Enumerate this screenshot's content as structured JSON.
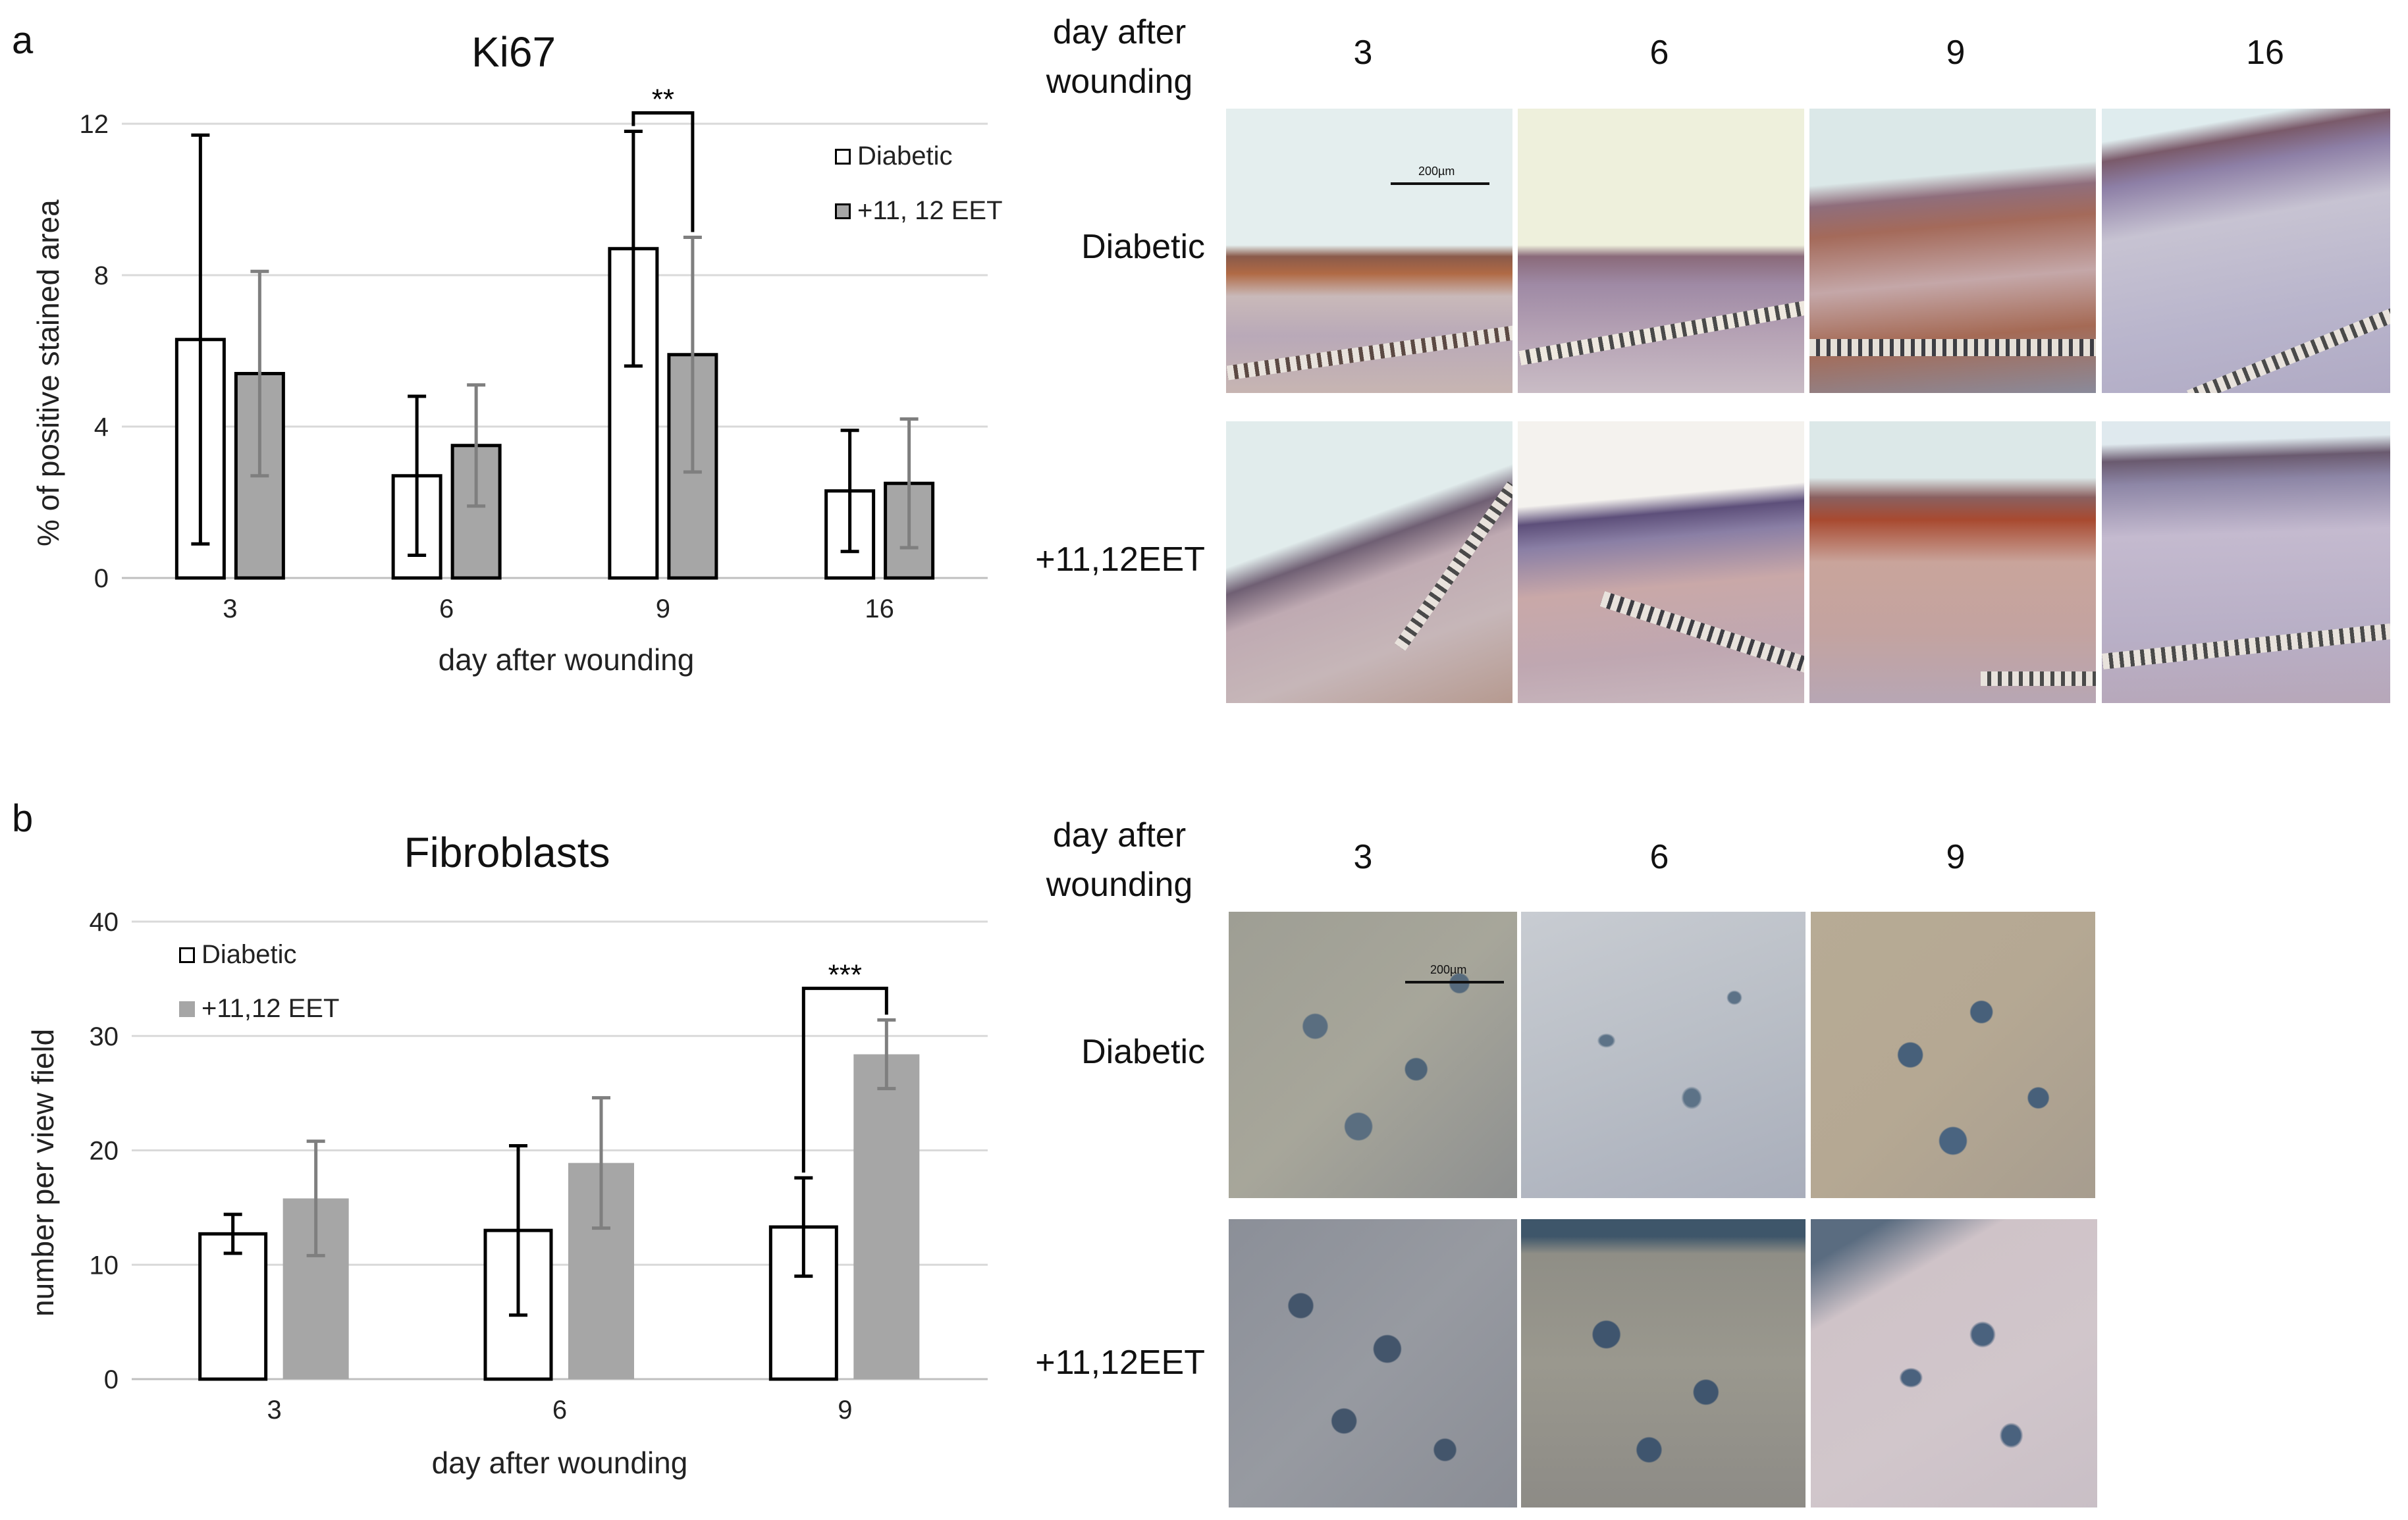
{
  "panel_a": {
    "letter": "a",
    "chart_data": {
      "type": "bar",
      "title": "Ki67",
      "xlabel": "day after wounding",
      "ylabel": "% of positive stained area",
      "categories": [
        "3",
        "6",
        "9",
        "16"
      ],
      "ylim": [
        0,
        12
      ],
      "yticks": [
        "0",
        "4",
        "8",
        "12"
      ],
      "series": [
        {
          "name": "Diabetic",
          "values": [
            6.3,
            2.7,
            8.7,
            2.3
          ],
          "errors": [
            5.4,
            2.1,
            3.1,
            1.6
          ],
          "color": "#ffffff",
          "stroke": "#000000"
        },
        {
          "name": "+11, 12 EET",
          "values": [
            5.4,
            3.5,
            5.9,
            2.5
          ],
          "errors": [
            2.7,
            1.6,
            3.1,
            1.7
          ],
          "color": "#a6a6a6",
          "stroke": "#000000"
        }
      ],
      "significance": {
        "category": "9",
        "label": "**"
      },
      "grid": true,
      "legend": "top-right"
    },
    "micrograph_grid": {
      "header_label": "day after wounding",
      "columns": [
        "3",
        "6",
        "9",
        "16"
      ],
      "rows": [
        "Diabetic",
        "+11,12EET"
      ],
      "scale_bar": "200µm"
    }
  },
  "panel_b": {
    "letter": "b",
    "chart_data": {
      "type": "bar",
      "title": "Fibroblasts",
      "xlabel": "day after wounding",
      "ylabel": "number per view field",
      "categories": [
        "3",
        "6",
        "9"
      ],
      "ylim": [
        0,
        40
      ],
      "yticks": [
        "0",
        "10",
        "20",
        "30",
        "40"
      ],
      "series": [
        {
          "name": "Diabetic",
          "values": [
            12.7,
            13.0,
            13.3
          ],
          "errors": [
            1.7,
            7.4,
            4.3
          ],
          "color": "#ffffff",
          "stroke": "#000000"
        },
        {
          "name": "+11,12 EET",
          "values": [
            15.8,
            18.9,
            28.4
          ],
          "errors": [
            5.0,
            5.7,
            3.0
          ],
          "color": "#a6a6a6",
          "stroke": "none"
        }
      ],
      "significance": {
        "category": "9",
        "label": "***"
      },
      "grid": true,
      "legend": "top-left"
    },
    "micrograph_grid": {
      "header_label": "day after wounding",
      "columns": [
        "3",
        "6",
        "9"
      ],
      "rows": [
        "Diabetic",
        "+11,12EET"
      ],
      "scale_bar": "200µm"
    }
  },
  "colors": {
    "diabetic_fill": "#ffffff",
    "eet_fill": "#a6a6a6",
    "gridline": "#d9d9d9",
    "axis": "#bfbfbf",
    "error_bar_grey": "#7f7f7f"
  }
}
